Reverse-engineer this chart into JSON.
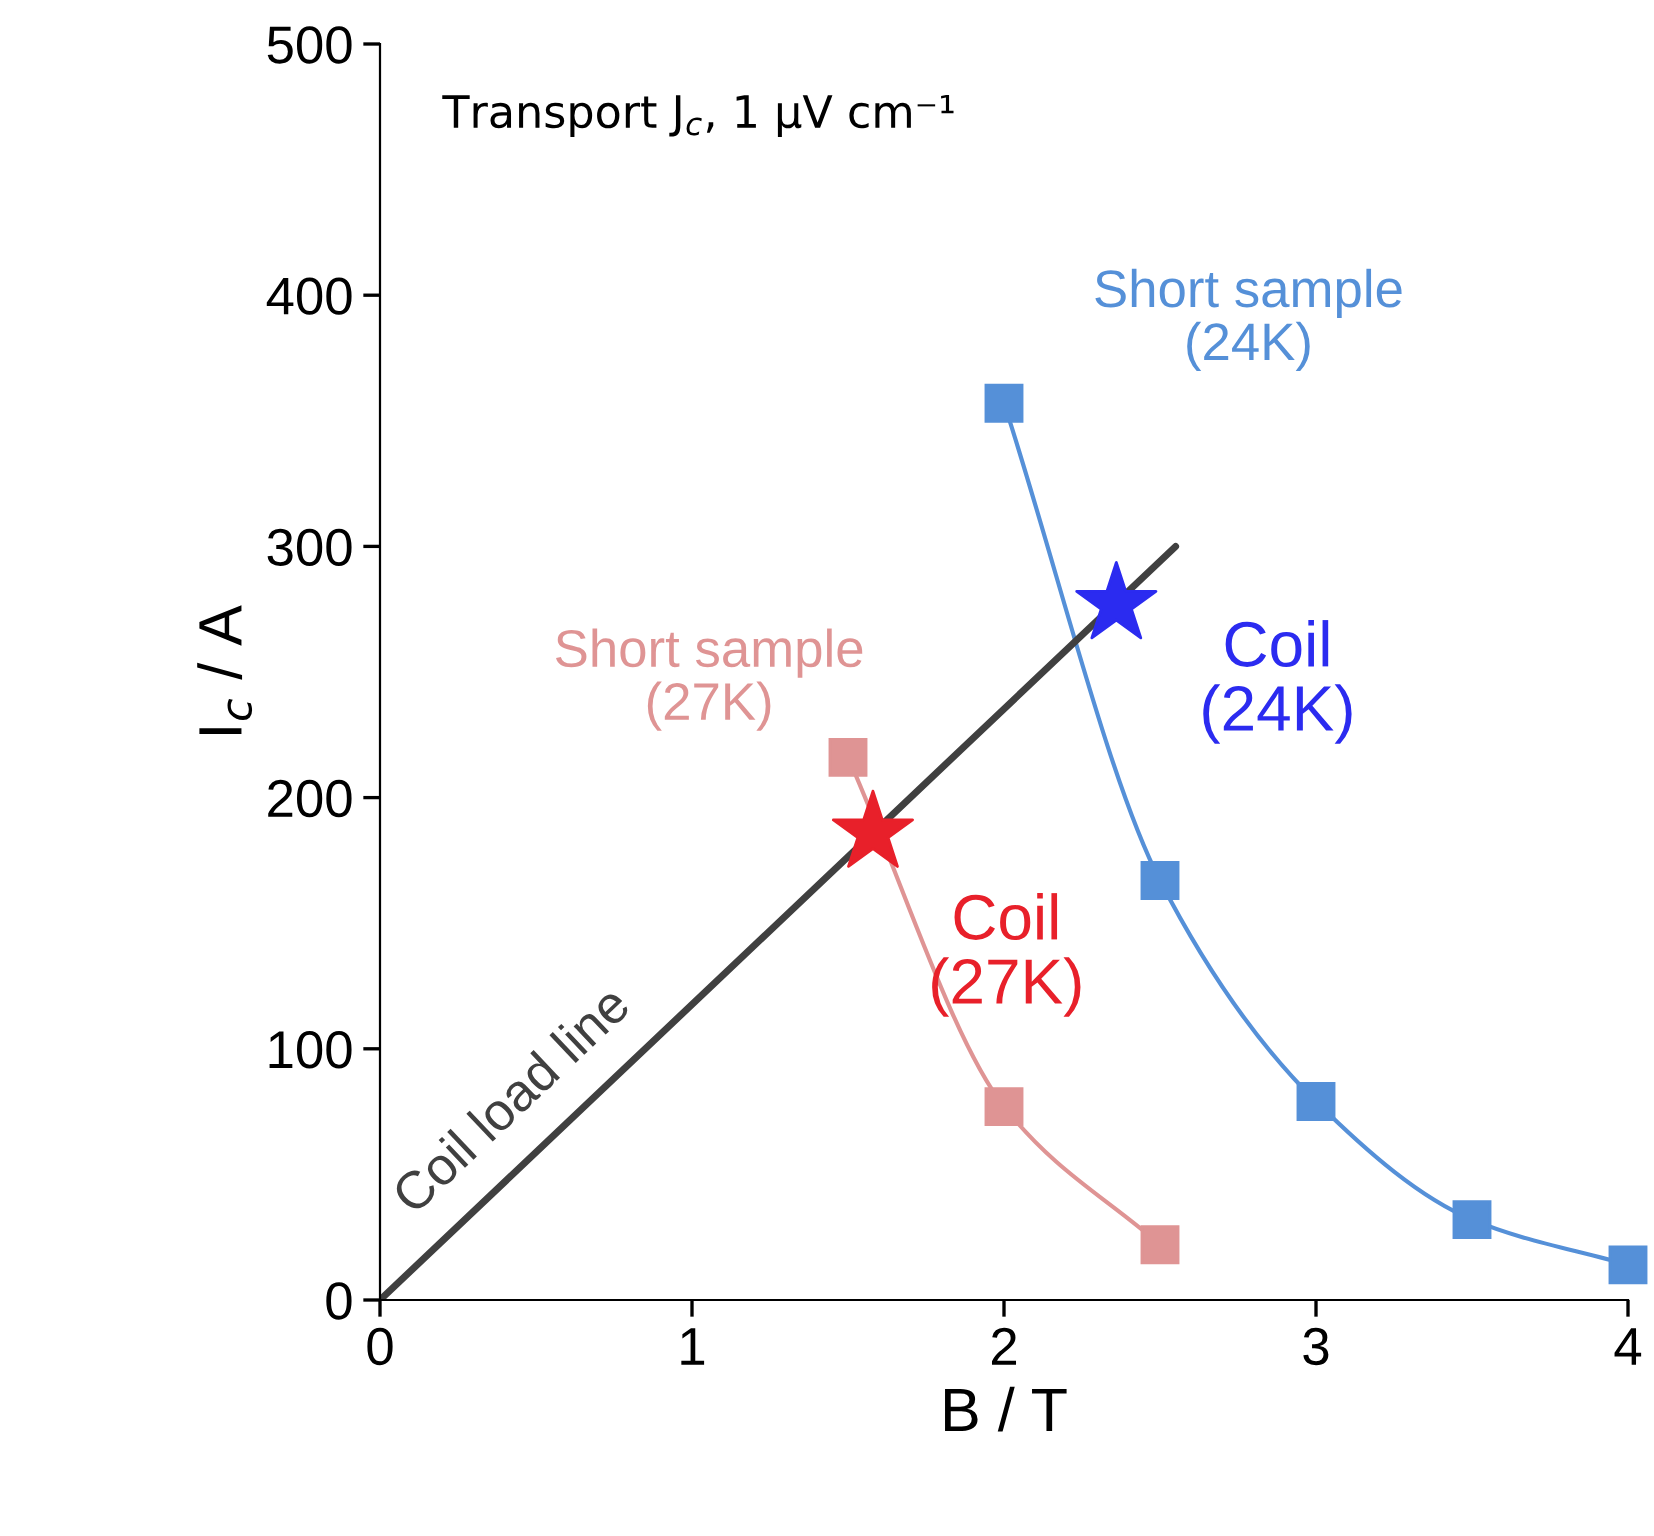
{
  "chart_data": {
    "type": "line",
    "title": "Transport J$_{c}$, 1 μV cm⁻¹",
    "xlabel": "B / T",
    "ylabel": "I$_{c}$ / A",
    "xlim": [
      0,
      4
    ],
    "ylim": [
      0,
      500
    ],
    "xticks": [
      0,
      1,
      2,
      3,
      4
    ],
    "yticks": [
      0,
      100,
      200,
      300,
      400,
      500
    ],
    "grid": false,
    "legend": false,
    "series": [
      {
        "name": "Coil load line",
        "color": "#404040",
        "marker": "none",
        "x": [
          0,
          2.55
        ],
        "values": [
          0,
          300
        ]
      },
      {
        "name": "Short sample (27K)",
        "color": "#df9494",
        "marker": "square",
        "x": [
          1.5,
          2,
          2.5
        ],
        "values": [
          216,
          77,
          22
        ]
      },
      {
        "name": "Short sample (24K)",
        "color": "#5590d8",
        "marker": "square",
        "x": [
          2,
          2.5,
          3,
          3.5,
          4
        ],
        "values": [
          357,
          167,
          79,
          32,
          14
        ]
      },
      {
        "name": "Coil (27K)",
        "type": "scatter",
        "color": "#e8202a",
        "marker": "star",
        "x": [
          1.58
        ],
        "values": [
          186
        ]
      },
      {
        "name": "Coil (24K)",
        "type": "scatter",
        "color": "#2b2bf0",
        "marker": "star",
        "x": [
          2.36
        ],
        "values": [
          277
        ]
      }
    ]
  }
}
